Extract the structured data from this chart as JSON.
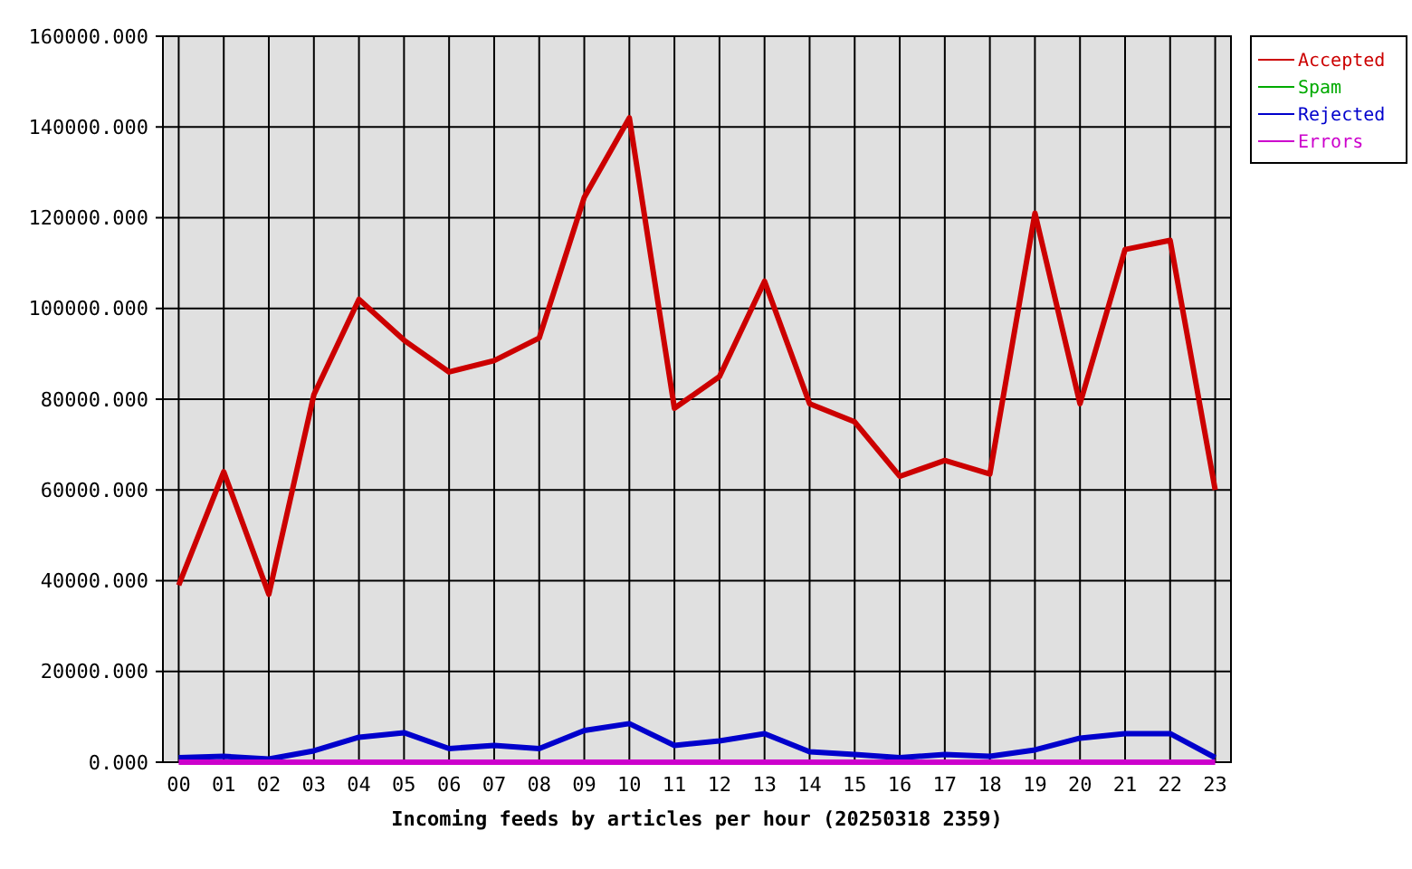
{
  "chart_data": {
    "type": "line",
    "xlabel": "Incoming feeds by articles per hour (20250318 2359)",
    "categories": [
      "00",
      "01",
      "02",
      "03",
      "04",
      "05",
      "06",
      "07",
      "08",
      "09",
      "10",
      "11",
      "12",
      "13",
      "14",
      "15",
      "16",
      "17",
      "18",
      "19",
      "20",
      "21",
      "22",
      "23"
    ],
    "series": [
      {
        "name": "Accepted",
        "color": "#cc0000",
        "values": [
          39000,
          64000,
          37000,
          81000,
          102000,
          93000,
          86000,
          88500,
          93500,
          124500,
          142000,
          78000,
          85000,
          106000,
          79000,
          75000,
          63000,
          66500,
          63500,
          121000,
          79000,
          113000,
          115000,
          60000
        ]
      },
      {
        "name": "Spam",
        "color": "#00aa00",
        "values": [
          null,
          null,
          null,
          null,
          null,
          null,
          null,
          null,
          null,
          null,
          null,
          null,
          null,
          null,
          null,
          null,
          null,
          null,
          null,
          null,
          null,
          null,
          null,
          null
        ]
      },
      {
        "name": "Rejected",
        "color": "#0000cc",
        "values": [
          1000,
          1300,
          700,
          2500,
          5500,
          6500,
          3000,
          3700,
          3000,
          7000,
          8500,
          3700,
          4700,
          6300,
          2300,
          1700,
          1000,
          1700,
          1300,
          2700,
          5300,
          6300,
          6300,
          1000
        ]
      },
      {
        "name": "Errors",
        "color": "#cc00cc",
        "values": [
          0,
          0,
          0,
          0,
          0,
          0,
          0,
          0,
          0,
          0,
          0,
          0,
          0,
          0,
          0,
          0,
          0,
          0,
          0,
          0,
          0,
          0,
          0,
          0
        ]
      }
    ],
    "ylim": [
      0,
      160000
    ],
    "yticks": [
      {
        "value": 0,
        "label": "0.000"
      },
      {
        "value": 20000,
        "label": "20000.000"
      },
      {
        "value": 40000,
        "label": "40000.000"
      },
      {
        "value": 60000,
        "label": "60000.000"
      },
      {
        "value": 80000,
        "label": "80000.000"
      },
      {
        "value": 100000,
        "label": "100000.000"
      },
      {
        "value": 120000,
        "label": "120000.000"
      },
      {
        "value": 140000,
        "label": "140000.000"
      },
      {
        "value": 160000,
        "label": "160000.000"
      }
    ],
    "grid": true,
    "legend": "top right",
    "line_style": "solid"
  }
}
